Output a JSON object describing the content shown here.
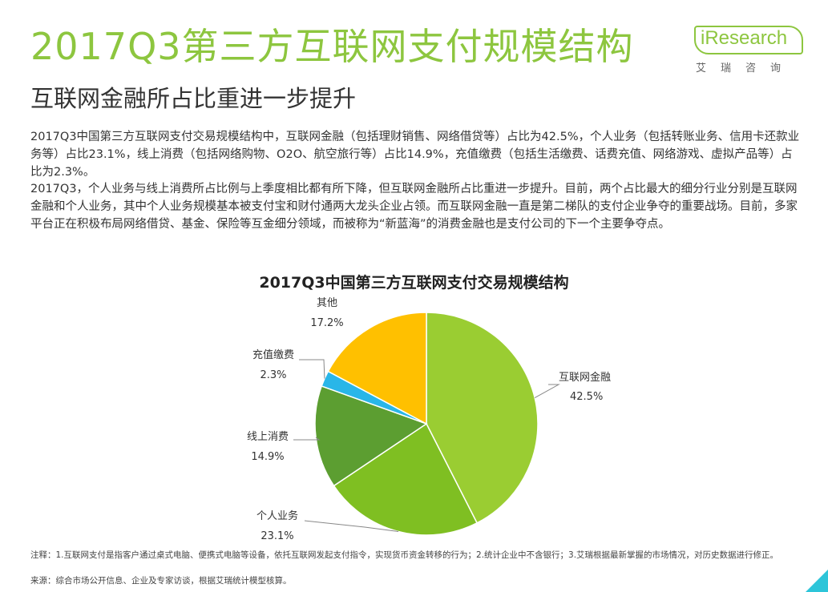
{
  "header": {
    "title": "2017Q3第三方互联网支付规模结构",
    "subtitle": "互联网金融所占比重进一步提升"
  },
  "logo": {
    "text": "iResearch",
    "cn": "艾瑞咨询"
  },
  "body": {
    "para1": "2017Q3中国第三方互联网支付交易规模结构中，互联网金融（包括理财销售、网络借贷等）占比为42.5%，个人业务（包括转账业务、信用卡还款业务等）占比23.1%，线上消费（包括网络购物、O2O、航空旅行等）占比14.9%，充值缴费（包括生活缴费、话费充值、网络游戏、虚拟产品等）占比为2.3%。",
    "para2": "2017Q3，个人业务与线上消费所占比例与上季度相比都有所下降，但互联网金融所占比重进一步提升。目前，两个占比最大的细分行业分别是互联网金融和个人业务，其中个人业务规模基本被支付宝和财付通两大龙头企业占领。而互联网金融一直是第二梯队的支付企业争夺的重要战场。目前，多家平台正在积极布局网络借贷、基金、保险等互金细分领域，而被称为“新蓝海”的消费金融也是支付公司的下一个主要争夺点。"
  },
  "chart_data": {
    "type": "pie",
    "title": "2017Q3中国第三方互联网支付交易规模结构",
    "slices": [
      {
        "name": "互联网金融",
        "value": 42.5,
        "label": "42.5%",
        "color": "#9acd32"
      },
      {
        "name": "个人业务",
        "value": 23.1,
        "label": "23.1%",
        "color": "#7fbf22"
      },
      {
        "name": "线上消费",
        "value": 14.9,
        "label": "14.9%",
        "color": "#5c9e31"
      },
      {
        "name": "充值缴费",
        "value": 2.3,
        "label": "2.3%",
        "color": "#29b6e8"
      },
      {
        "name": "其他",
        "value": 17.2,
        "label": "17.2%",
        "color": "#ffc000"
      }
    ]
  },
  "notes": {
    "note1": "注释：1.互联网支付是指客户通过桌式电脑、便携式电脑等设备，依托互联网发起支付指令，实现货币资金转移的行为；2.统计企业中不含银行；3.艾瑞根据最新掌握的市场情况，对历史数据进行修正。",
    "note2": "来源：综合市场公开信息、企业及专家访谈，根据艾瑞统计模型核算。"
  }
}
